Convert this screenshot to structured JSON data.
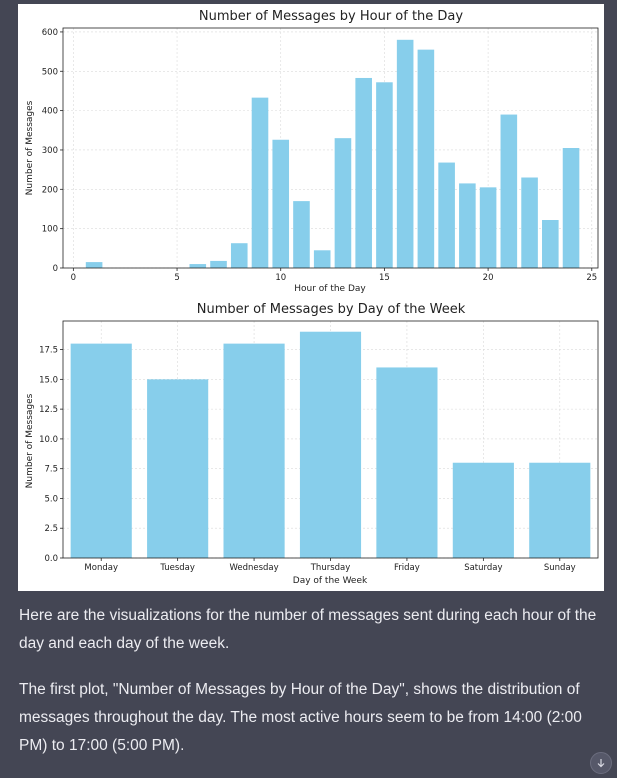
{
  "chart_data": [
    {
      "type": "bar",
      "title": "Number of Messages by Hour of the Day",
      "xlabel": "Hour of the Day",
      "ylabel": "Number of Messages",
      "x": [
        1,
        5,
        6,
        7,
        8,
        9,
        10,
        11,
        12,
        13,
        14,
        15,
        16,
        17,
        18,
        19,
        20,
        21,
        22,
        23,
        24
      ],
      "values": [
        15,
        0,
        10,
        18,
        63,
        433,
        326,
        170,
        45,
        330,
        483,
        472,
        580,
        555,
        268,
        215,
        205,
        390,
        230,
        122,
        305
      ],
      "xlim": [
        -0.5,
        25.3
      ],
      "ylim": [
        0,
        610
      ],
      "xticks": [
        0,
        5,
        10,
        15,
        20,
        25
      ],
      "yticks": [
        0,
        100,
        200,
        300,
        400,
        500,
        600
      ],
      "grid": true,
      "color": "#87ceeb"
    },
    {
      "type": "bar",
      "title": "Number of Messages by Day of the Week",
      "xlabel": "Day of the Week",
      "ylabel": "Number of Messages",
      "categories": [
        "Monday",
        "Tuesday",
        "Wednesday",
        "Thursday",
        "Friday",
        "Saturday",
        "Sunday"
      ],
      "values": [
        18,
        15,
        18,
        19,
        16,
        8,
        8
      ],
      "ylim": [
        0,
        19.9
      ],
      "yticks": [
        "0.0",
        "2.5",
        "5.0",
        "7.5",
        "10.0",
        "12.5",
        "15.0",
        "17.5"
      ],
      "grid": true,
      "color": "#87ceeb"
    }
  ],
  "message": {
    "paragraph1": "Here are the visualizations for the number of messages sent during each hour of the day and each day of the week.",
    "paragraph2": "The first plot, \"Number of Messages by Hour of the Day\", shows the distribution of messages throughout the day. The most active hours seem to be from 14:00 (2:00 PM) to 17:00 (5:00 PM)."
  },
  "icons": {
    "scroll": "arrow-down-icon"
  }
}
